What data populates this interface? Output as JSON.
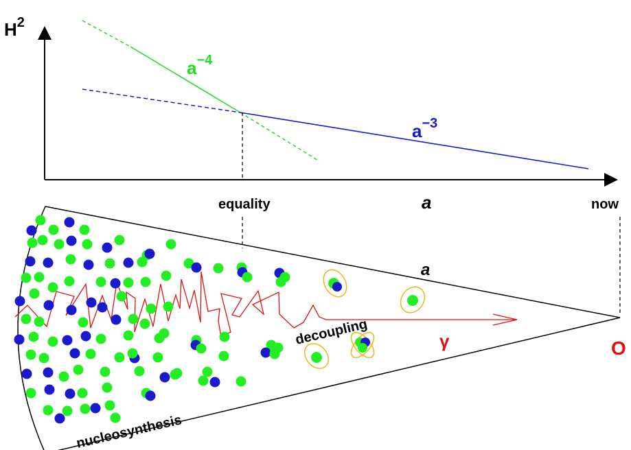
{
  "plot": {
    "y_axis_label": "H",
    "y_axis_exponent": "2",
    "x_axis_label": "a",
    "radiation_label": "a",
    "radiation_exponent": "−4",
    "matter_label": "a",
    "matter_exponent": "−3",
    "radiation_color": "#22dd22",
    "matter_color": "#1a1acc"
  },
  "markers": {
    "equality": "equality",
    "now": "now"
  },
  "cone": {
    "scale_label": "a",
    "photon_label": "γ",
    "observer_label": "O",
    "decoupling_label": "decoupling",
    "nucleosynthesis_label": "nucleosynthesis",
    "photon_color": "#dd1111",
    "orbit_color": "#f2b418"
  },
  "particle_colors": {
    "green": "#22ee22",
    "blue": "#1a1acc"
  }
}
